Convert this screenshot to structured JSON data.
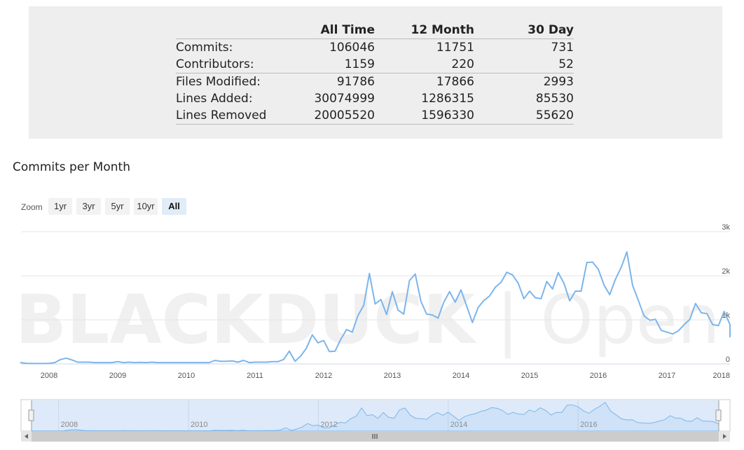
{
  "stats": {
    "headers": [
      "",
      "All Time",
      "12 Month",
      "30 Day"
    ],
    "rows": [
      {
        "label": "Commits:",
        "all_time": "106046",
        "twelve_month": "11751",
        "thirty_day": "731"
      },
      {
        "label": "Contributors:",
        "all_time": "1159",
        "twelve_month": "220",
        "thirty_day": "52"
      },
      {
        "label": "Files Modified:",
        "all_time": "91786",
        "twelve_month": "17866",
        "thirty_day": "2993"
      },
      {
        "label": "Lines Added:",
        "all_time": "30074999",
        "twelve_month": "1286315",
        "thirty_day": "85530"
      },
      {
        "label": "Lines Removed",
        "all_time": "20005520",
        "twelve_month": "1596330",
        "thirty_day": "55620"
      }
    ]
  },
  "chart_title": "Commits per Month",
  "zoom": {
    "label": "Zoom",
    "buttons": [
      "1yr",
      "3yr",
      "5yr",
      "10yr",
      "All"
    ],
    "selected": "All"
  },
  "watermark": {
    "bold": "BLACKDUCK",
    "light": " | Open Hub"
  },
  "navigator": {
    "year_labels": [
      "2008",
      "2010",
      "2012",
      "2014",
      "2016"
    ]
  },
  "colors": {
    "line": "#7cb5ec",
    "navigator_fill": "#dae8f8",
    "panel": "#eeeeee"
  },
  "chart_data": {
    "type": "line",
    "title": "Commits per Month",
    "xlabel": "",
    "ylabel": "",
    "ylim": [
      0,
      3000
    ],
    "yticks": [
      0,
      1000,
      2000,
      3000
    ],
    "ytick_labels": [
      "0",
      "1k",
      "2k",
      "3k"
    ],
    "xticks": [
      "2008",
      "2009",
      "2010",
      "2011",
      "2012",
      "2013",
      "2014",
      "2015",
      "2016",
      "2017",
      "2018"
    ],
    "x_start": "2007-08",
    "series": [
      {
        "values": [
          30,
          15,
          10,
          10,
          10,
          15,
          30,
          100,
          130,
          90,
          40,
          40,
          40,
          30,
          30,
          30,
          30,
          50,
          30,
          40,
          30,
          35,
          30,
          40,
          30,
          30,
          30,
          30,
          30,
          30,
          30,
          30,
          30,
          30,
          80,
          60,
          60,
          70,
          40,
          80,
          30,
          40,
          40,
          40,
          50,
          50,
          100,
          290,
          60,
          180,
          360,
          660,
          480,
          530,
          280,
          290,
          560,
          780,
          720,
          1100,
          1330,
          2050,
          1360,
          1460,
          1120,
          1640,
          1220,
          1130,
          1890,
          2040,
          1420,
          1130,
          1110,
          1040,
          1400,
          1640,
          1400,
          1680,
          1310,
          940,
          1280,
          1440,
          1540,
          1740,
          1850,
          2080,
          2020,
          1830,
          1480,
          1650,
          1500,
          1480,
          1870,
          1700,
          2070,
          1830,
          1430,
          1650,
          1650,
          2300,
          2310,
          2150,
          1790,
          1570,
          1920,
          2190,
          2540,
          1780,
          1440,
          1090,
          990,
          1010,
          760,
          720,
          680,
          750,
          890,
          1010,
          1370,
          1160,
          1140,
          890,
          870,
          1190,
          900,
          870,
          840,
          610
        ]
      }
    ]
  }
}
